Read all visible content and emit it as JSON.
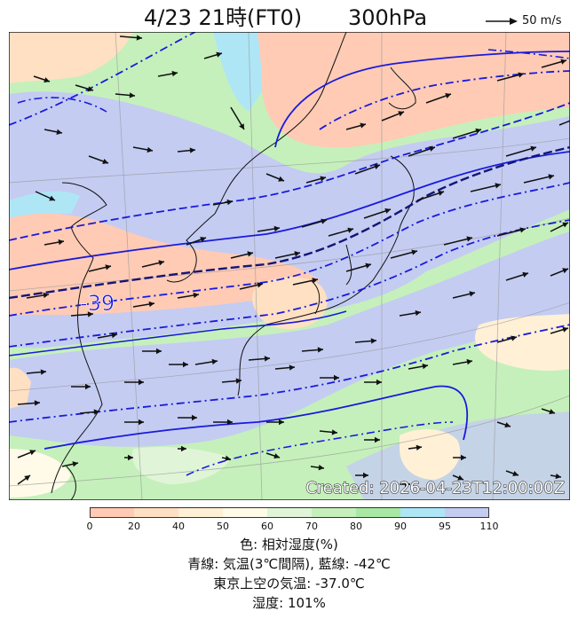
{
  "title": {
    "date_time": "4/23 21時(FT0)",
    "level": "300hPa"
  },
  "wind_legend": {
    "label": "50 m/s"
  },
  "map": {
    "created_stamp": "Created: 2026-04-23T12:00:00Z",
    "isotherm_label": "-39"
  },
  "colorbar": {
    "ticks": [
      "0",
      "20",
      "40",
      "50",
      "60",
      "70",
      "80",
      "90",
      "95",
      "110"
    ],
    "colors": [
      "#ffcbb5",
      "#ffe0c2",
      "#fff0d6",
      "#fffbe8",
      "#e0f5d8",
      "#c5f0bb",
      "#a8e8a4",
      "#aee6f6",
      "#c4ccf2"
    ]
  },
  "captions": {
    "color_meaning": "色: 相対湿度(%)",
    "lines_meaning": "青線: 気温(3℃間隔), 藍線: -42℃",
    "tokyo_temp": "東京上空の気温: -37.0℃",
    "humidity": "湿度: 101%"
  }
}
